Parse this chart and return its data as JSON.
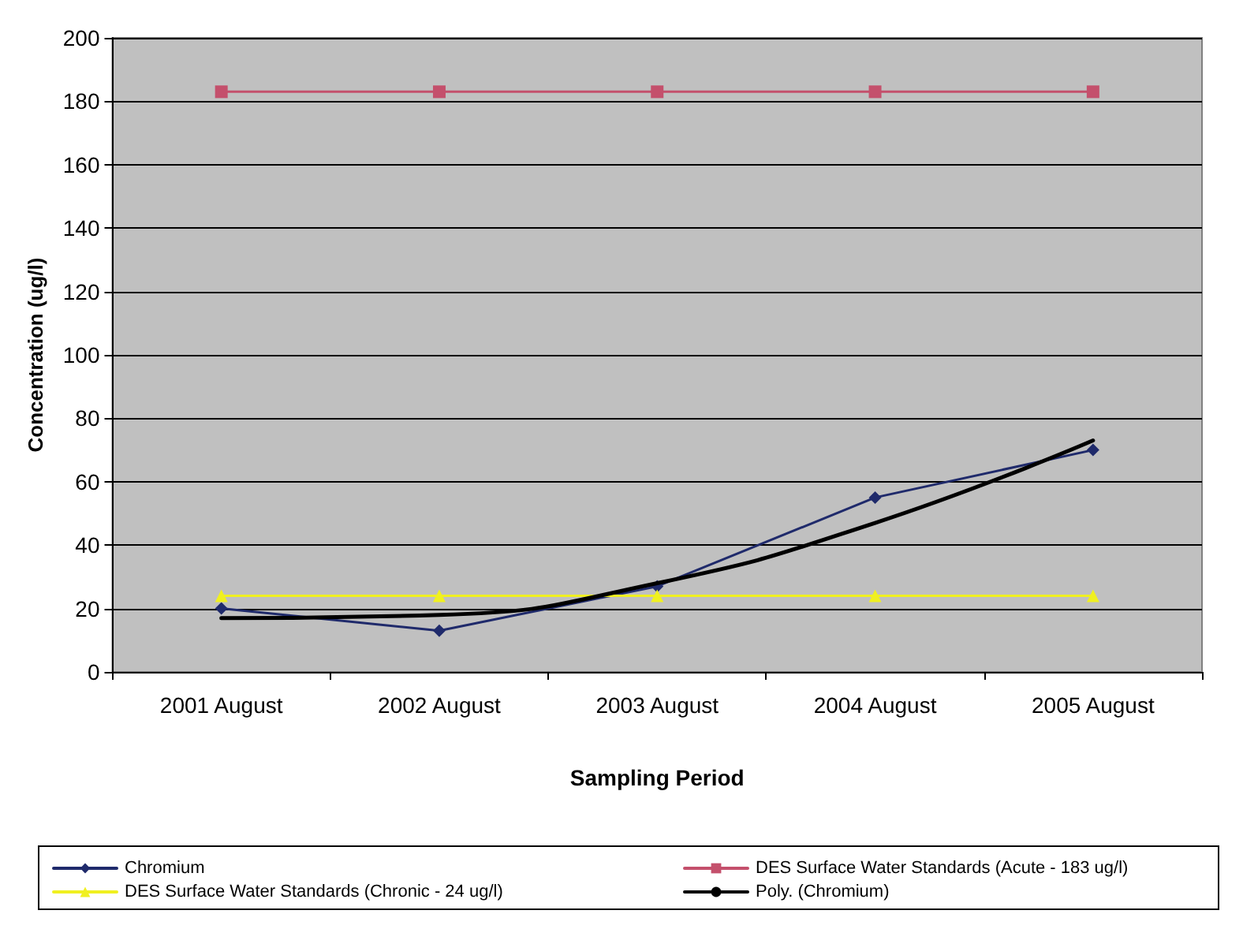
{
  "chart_data": {
    "type": "line",
    "xlabel": "Sampling Period",
    "ylabel": "Concentration (ug/l)",
    "categories": [
      "2001 August",
      "2002 August",
      "2003 August",
      "2004 August",
      "2005 August"
    ],
    "series": [
      {
        "name": "Chromium",
        "color": "#1f2a6b",
        "marker": "diamond",
        "values": [
          20,
          13,
          27,
          55,
          70
        ]
      },
      {
        "name": "DES Surface Water Standards (Acute - 183 ug/l)",
        "color": "#c4506c",
        "marker": "square",
        "values": [
          183,
          183,
          183,
          183,
          183
        ]
      },
      {
        "name": "DES Surface Water Standards (Chronic - 24 ug/l)",
        "color": "#f0f020",
        "marker": "triangle",
        "values": [
          24,
          24,
          24,
          24,
          24
        ]
      },
      {
        "name": "Poly. (Chromium)",
        "color": "#000000",
        "marker": "none",
        "values": [
          17,
          18,
          28,
          47,
          73
        ]
      }
    ],
    "ylim": [
      0,
      200
    ],
    "yticks": [
      0,
      20,
      40,
      60,
      80,
      100,
      120,
      140,
      160,
      180,
      200
    ],
    "grid": "y",
    "legend": "bottom",
    "line_style": "solid"
  }
}
